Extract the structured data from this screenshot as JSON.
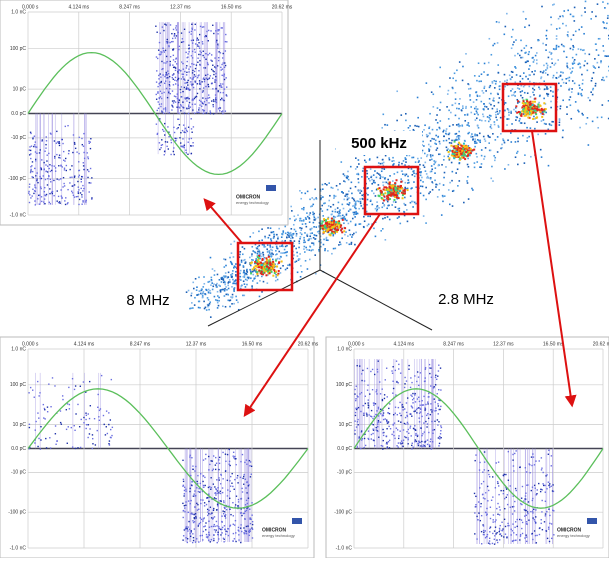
{
  "labels": {
    "center": "500 kHz",
    "left": "8 MHz",
    "right": "2.8 MHz"
  },
  "inset": {
    "x_ticks": [
      "0.000 s",
      "4.124 ms",
      "8.247 ms",
      "12.37 ms",
      "16.50 ms",
      "20.62 ms"
    ],
    "y_ticks": [
      "1.0 nC",
      "100 pC",
      "10 pC",
      "0.0 pC",
      "-10 pC",
      "-100 pC",
      "-1.0 nC"
    ],
    "brand": "OMICRON",
    "brand_sub": "energy technology"
  }
}
